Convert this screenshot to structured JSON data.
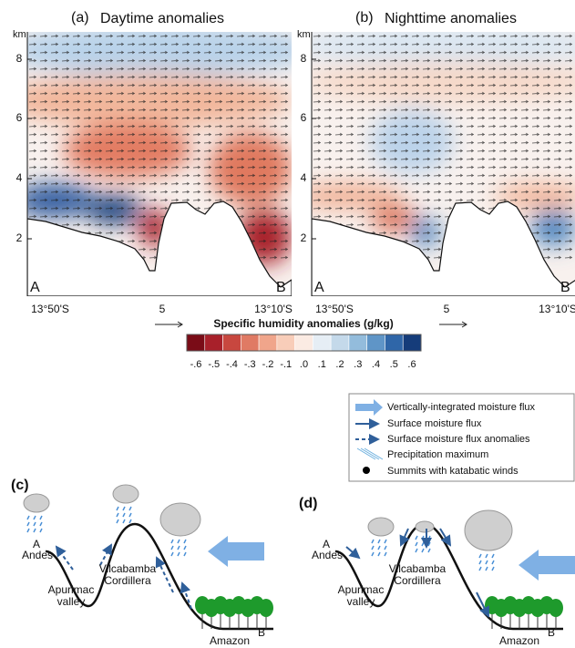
{
  "panels": [
    {
      "label": "(a)",
      "title": "Daytime anomalies",
      "y_unit": "km",
      "y_ticks": [
        "8",
        "6",
        "4",
        "2"
      ],
      "x_labels": [
        "13°50'S",
        "5",
        "13°10'S"
      ],
      "start": "A",
      "end": "B"
    },
    {
      "label": "(b)",
      "title": "Nighttime anomalies",
      "y_unit": "km",
      "y_ticks": [
        "8",
        "6",
        "4",
        "2"
      ],
      "x_labels": [
        "13°50'S",
        "5",
        "13°10'S"
      ],
      "start": "A",
      "end": "B"
    }
  ],
  "colorbar": {
    "title": "Specific humidity anomalies (g/kg)",
    "labels": [
      "-.6",
      "-.5",
      "-.4",
      "-.3",
      "-.2",
      "-.1",
      ".0",
      ".1",
      ".2",
      ".3",
      ".4",
      ".5",
      ".6"
    ],
    "colors": [
      "#7a0c17",
      "#a8202a",
      "#c8473f",
      "#e07a64",
      "#f0a58b",
      "#f8cdb9",
      "#fbebe3",
      "#e6eef5",
      "#c4d9ea",
      "#93bcdc",
      "#5f95c7",
      "#2f66a8",
      "#153c7a"
    ]
  },
  "legend": {
    "items": [
      "Vertically-integrated moisture flux",
      "Surface moisture flux",
      "Surface moisture flux anomalies",
      "Precipitation maximum",
      "Summits with katabatic winds"
    ]
  },
  "schematics": [
    {
      "label": "(c)",
      "start": "A",
      "start_name": "Andes",
      "valley": [
        "Apurimac",
        "valley"
      ],
      "ridge": [
        "Vilcabamba",
        "Cordillera"
      ],
      "end": "B",
      "end_name": "Amazon"
    },
    {
      "label": "(d)",
      "start": "A",
      "start_name": "Andes",
      "valley": [
        "Apurimac",
        "valley"
      ],
      "ridge": [
        "Vilcabamba",
        "Cordillera"
      ],
      "end": "B",
      "end_name": "Amazon"
    }
  ]
}
